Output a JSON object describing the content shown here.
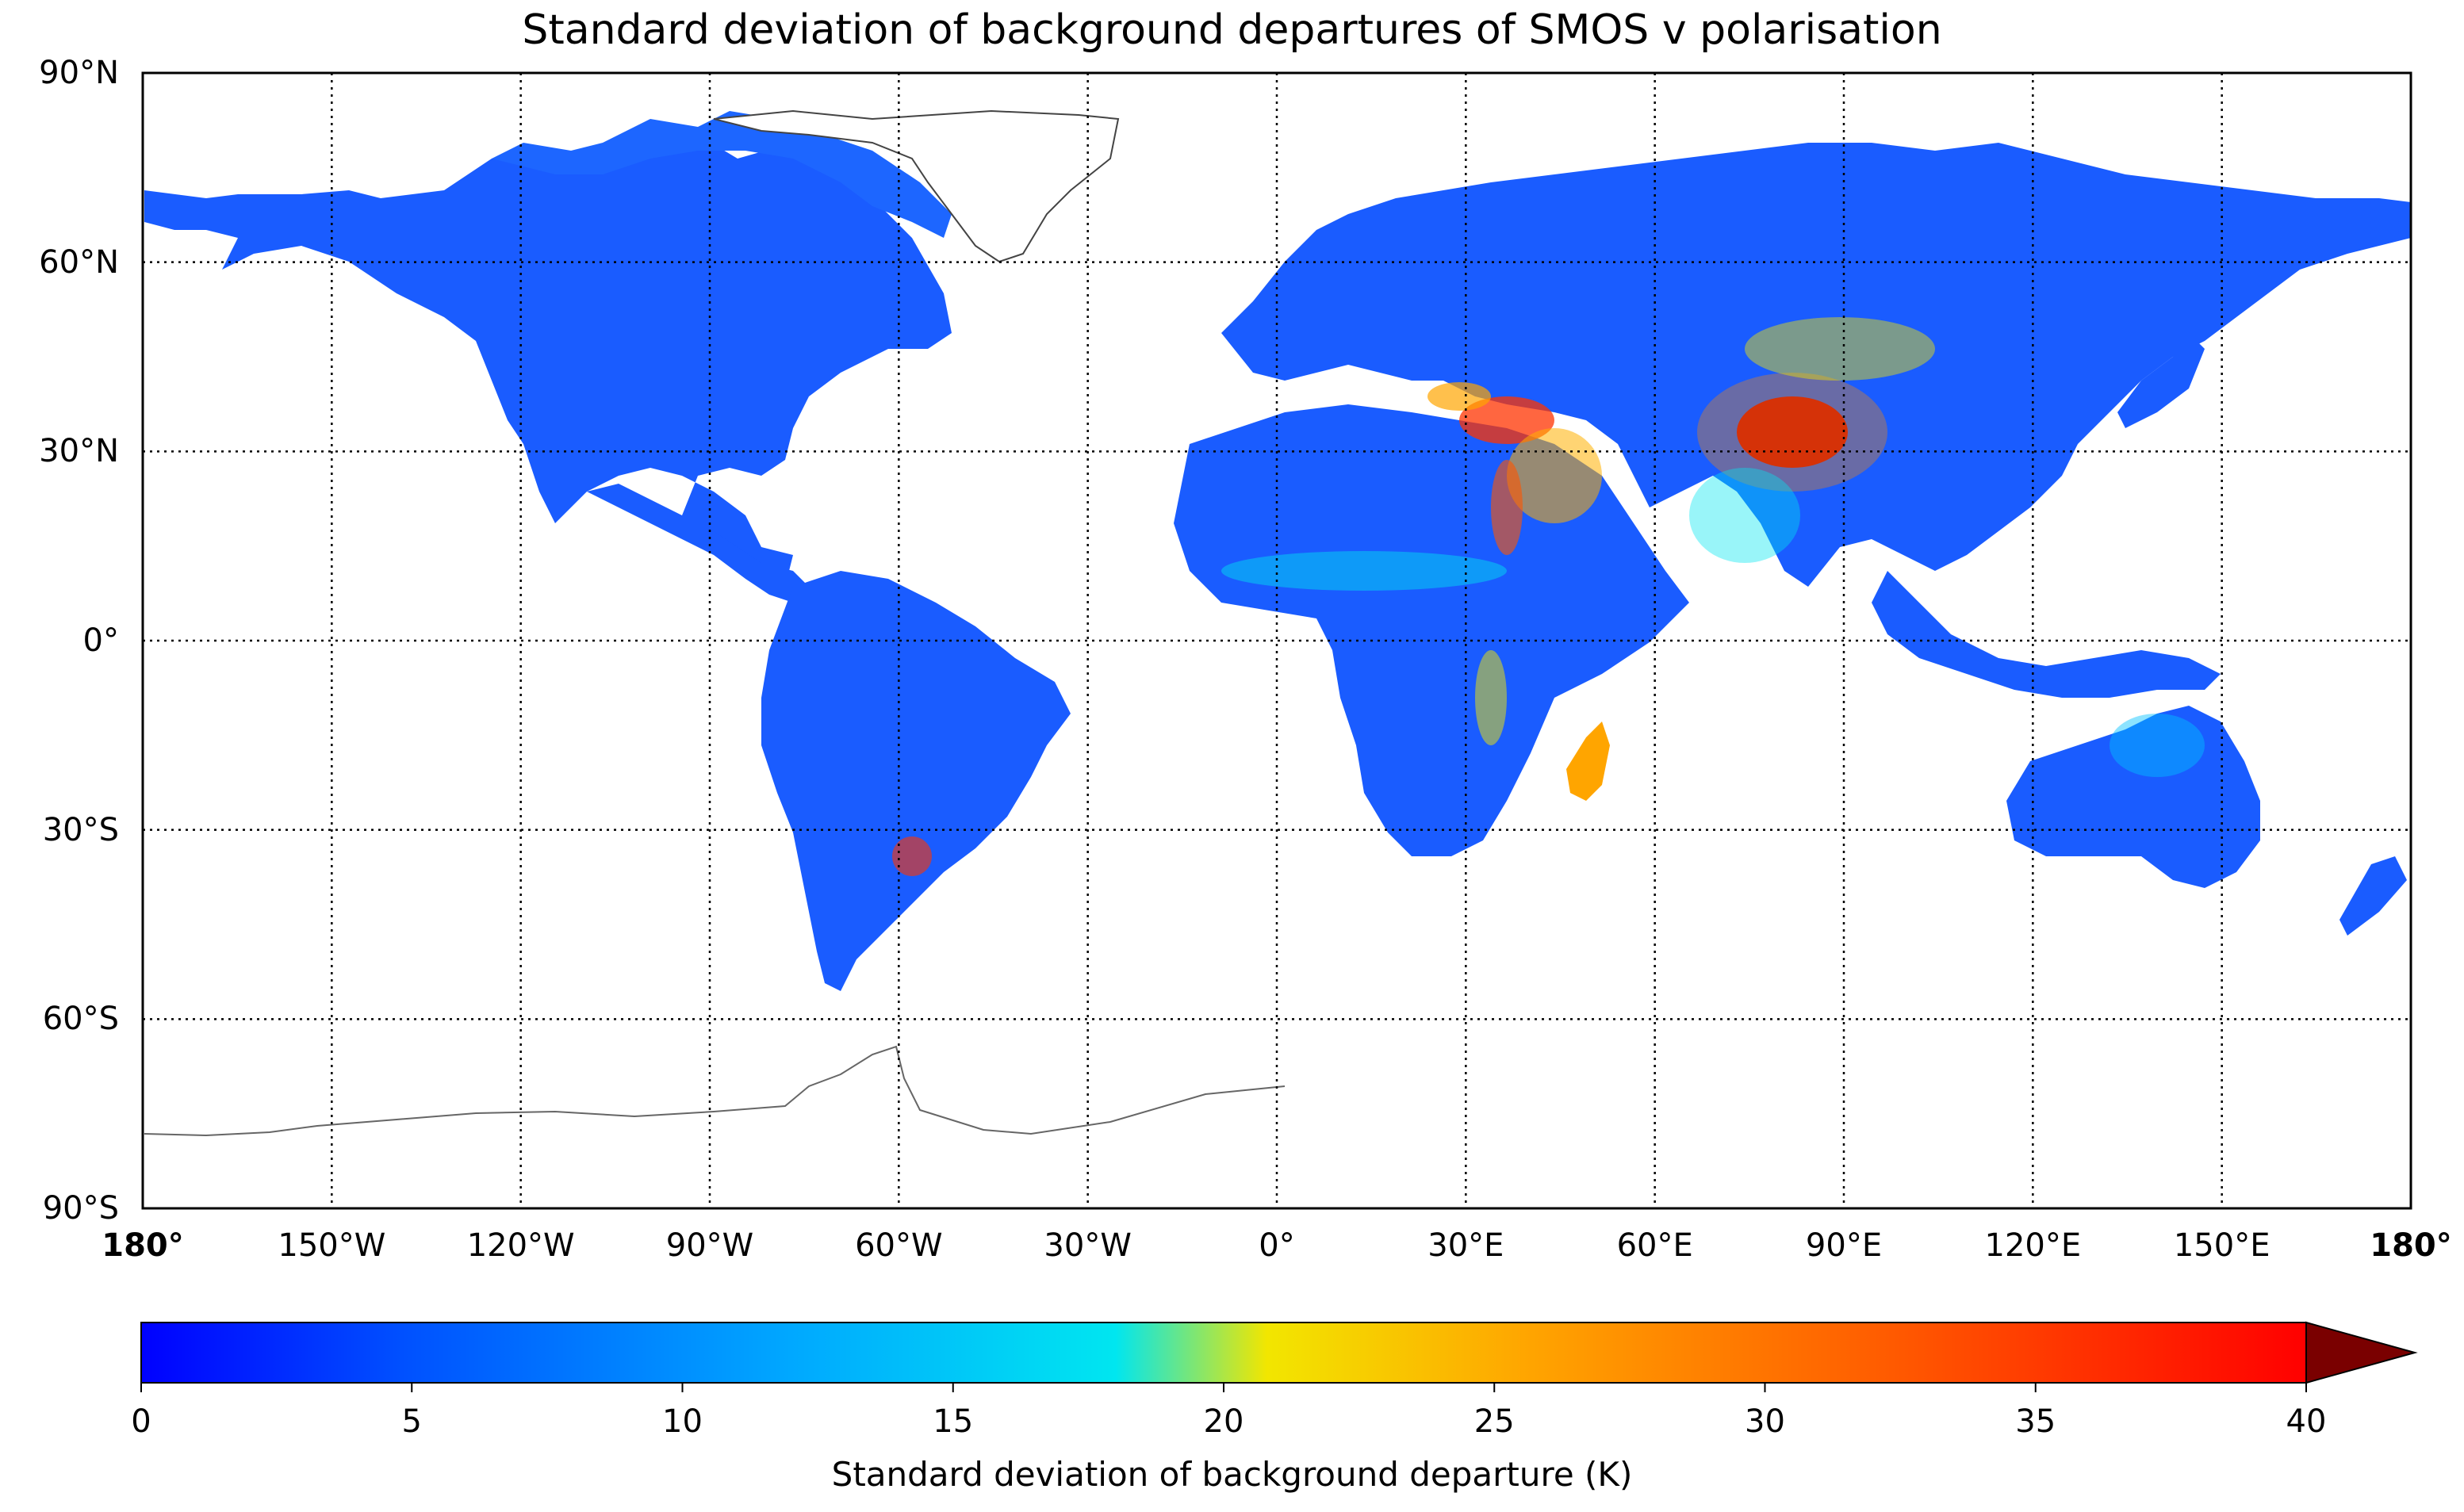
{
  "title": "Standard deviation of background departures of SMOS v polarisation",
  "map": {
    "projection": "Plate Carree",
    "lat_ticks": [
      {
        "value": 90,
        "label": "90°N"
      },
      {
        "value": 60,
        "label": "60°N"
      },
      {
        "value": 30,
        "label": "30°N"
      },
      {
        "value": 0,
        "label": "0°"
      },
      {
        "value": -30,
        "label": "30°S"
      },
      {
        "value": -60,
        "label": "60°S"
      },
      {
        "value": -90,
        "label": "90°S"
      }
    ],
    "lon_ticks": [
      {
        "value": -180,
        "label": "180°",
        "bold": true
      },
      {
        "value": -150,
        "label": "150°W"
      },
      {
        "value": -120,
        "label": "120°W"
      },
      {
        "value": -90,
        "label": "90°W"
      },
      {
        "value": -60,
        "label": "60°W"
      },
      {
        "value": -30,
        "label": "30°W"
      },
      {
        "value": 0,
        "label": "0°"
      },
      {
        "value": 30,
        "label": "30°E"
      },
      {
        "value": 60,
        "label": "60°E"
      },
      {
        "value": 90,
        "label": "90°E"
      },
      {
        "value": 120,
        "label": "120°E"
      },
      {
        "value": 150,
        "label": "150°E"
      },
      {
        "value": 180,
        "label": "180°",
        "bold": true
      }
    ],
    "gridlines": "dotted",
    "land_fill_base_value_K": 7,
    "hotspots": [
      {
        "region": "Tibetan Plateau",
        "value_K": 40
      },
      {
        "region": "Turkey / Iran",
        "value_K": 32
      },
      {
        "region": "Middle East / Red Sea coast",
        "value_K": 26
      },
      {
        "region": "Madagascar",
        "value_K": 25
      },
      {
        "region": "Mongolia / China",
        "value_K": 22
      },
      {
        "region": "Australia interior",
        "value_K": 15
      },
      {
        "region": "Sahel",
        "value_K": 17
      }
    ]
  },
  "colorbar": {
    "min": 0,
    "max": 40,
    "extend": "max",
    "ticks": [
      0,
      5,
      10,
      15,
      20,
      25,
      30,
      35,
      40
    ],
    "label": "Standard deviation of background departure (K)",
    "colormap": "jet",
    "colors": [
      "#0000ff",
      "#0050ff",
      "#00a8ff",
      "#00e6f0",
      "#f2e600",
      "#ffa500",
      "#ff5500",
      "#ff0000"
    ],
    "extend_color": "#7a0000"
  }
}
